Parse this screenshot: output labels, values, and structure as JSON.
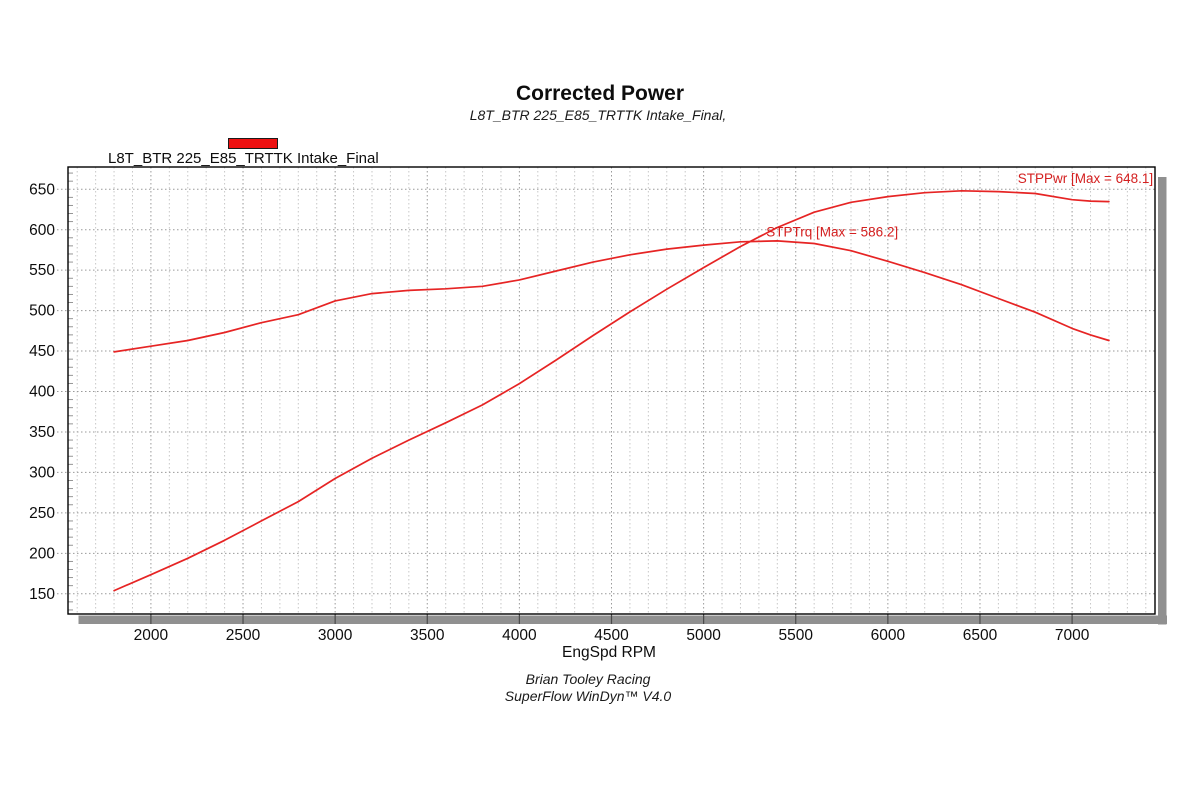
{
  "header": {
    "title": "Corrected Power",
    "subtitle": "L8T_BTR 225_E85_TRTTK Intake_Final,"
  },
  "legend": {
    "label": "L8T_BTR 225_E85_TRTTK Intake_Final",
    "swatch_color": "#ee1111"
  },
  "footer": {
    "line1": "Brian Tooley Racing",
    "line2": "SuperFlow WinDyn™ V4.0"
  },
  "chart_data": {
    "type": "line",
    "title": "Corrected Power",
    "subtitle": "L8T_BTR 225_E85_TRTTK Intake_Final,",
    "xlabel": "EngSpd RPM",
    "ylabel": "",
    "xlim": [
      1550,
      7450
    ],
    "ylim": [
      125,
      677.5
    ],
    "x_ticks": [
      2000,
      2500,
      3000,
      3500,
      4000,
      4500,
      5000,
      5500,
      6000,
      6500,
      7000
    ],
    "y_ticks": [
      150,
      200,
      250,
      300,
      350,
      400,
      450,
      500,
      550,
      600,
      650
    ],
    "x_minor_step": 100,
    "y_minor_step": 10,
    "grid": "dotted",
    "legend_position": "top-left",
    "line_color": "#e62424",
    "annotation_color": "#d42020",
    "shadow_color": "#909090",
    "x": [
      1800,
      2000,
      2200,
      2400,
      2600,
      2800,
      3000,
      3200,
      3400,
      3600,
      3800,
      4000,
      4200,
      4400,
      4600,
      4800,
      5000,
      5200,
      5400,
      5600,
      5800,
      6000,
      6200,
      6400,
      6600,
      6800,
      7000,
      7100,
      7200
    ],
    "series": [
      {
        "name": "STPPwr",
        "max": 648.1,
        "values": [
          153.9,
          173.6,
          193.9,
          216.1,
          240.1,
          263.9,
          292.5,
          317.4,
          339.9,
          361.3,
          383.5,
          409.8,
          439.0,
          469.2,
          498.4,
          526.4,
          553.1,
          579.2,
          602.7,
          621.6,
          633.9,
          640.9,
          645.7,
          648.1,
          647.1,
          644.7,
          637.1,
          635.4,
          634.7
        ]
      },
      {
        "name": "STPTrq",
        "max": 586.2,
        "values": [
          449,
          456,
          463,
          473,
          485,
          495,
          512,
          521,
          525,
          527,
          530,
          538,
          549,
          560,
          569,
          576,
          581,
          585,
          586.2,
          583,
          574,
          561,
          547,
          532,
          515,
          498,
          478,
          470,
          463
        ]
      }
    ],
    "annotations": [
      {
        "text": "STPPwr [Max = 648.1]",
        "x": 7440,
        "y": 662,
        "anchor": "end"
      },
      {
        "text": "STPTrq [Max = 586.2]",
        "x": 5340,
        "y": 596,
        "anchor": "start"
      }
    ]
  }
}
